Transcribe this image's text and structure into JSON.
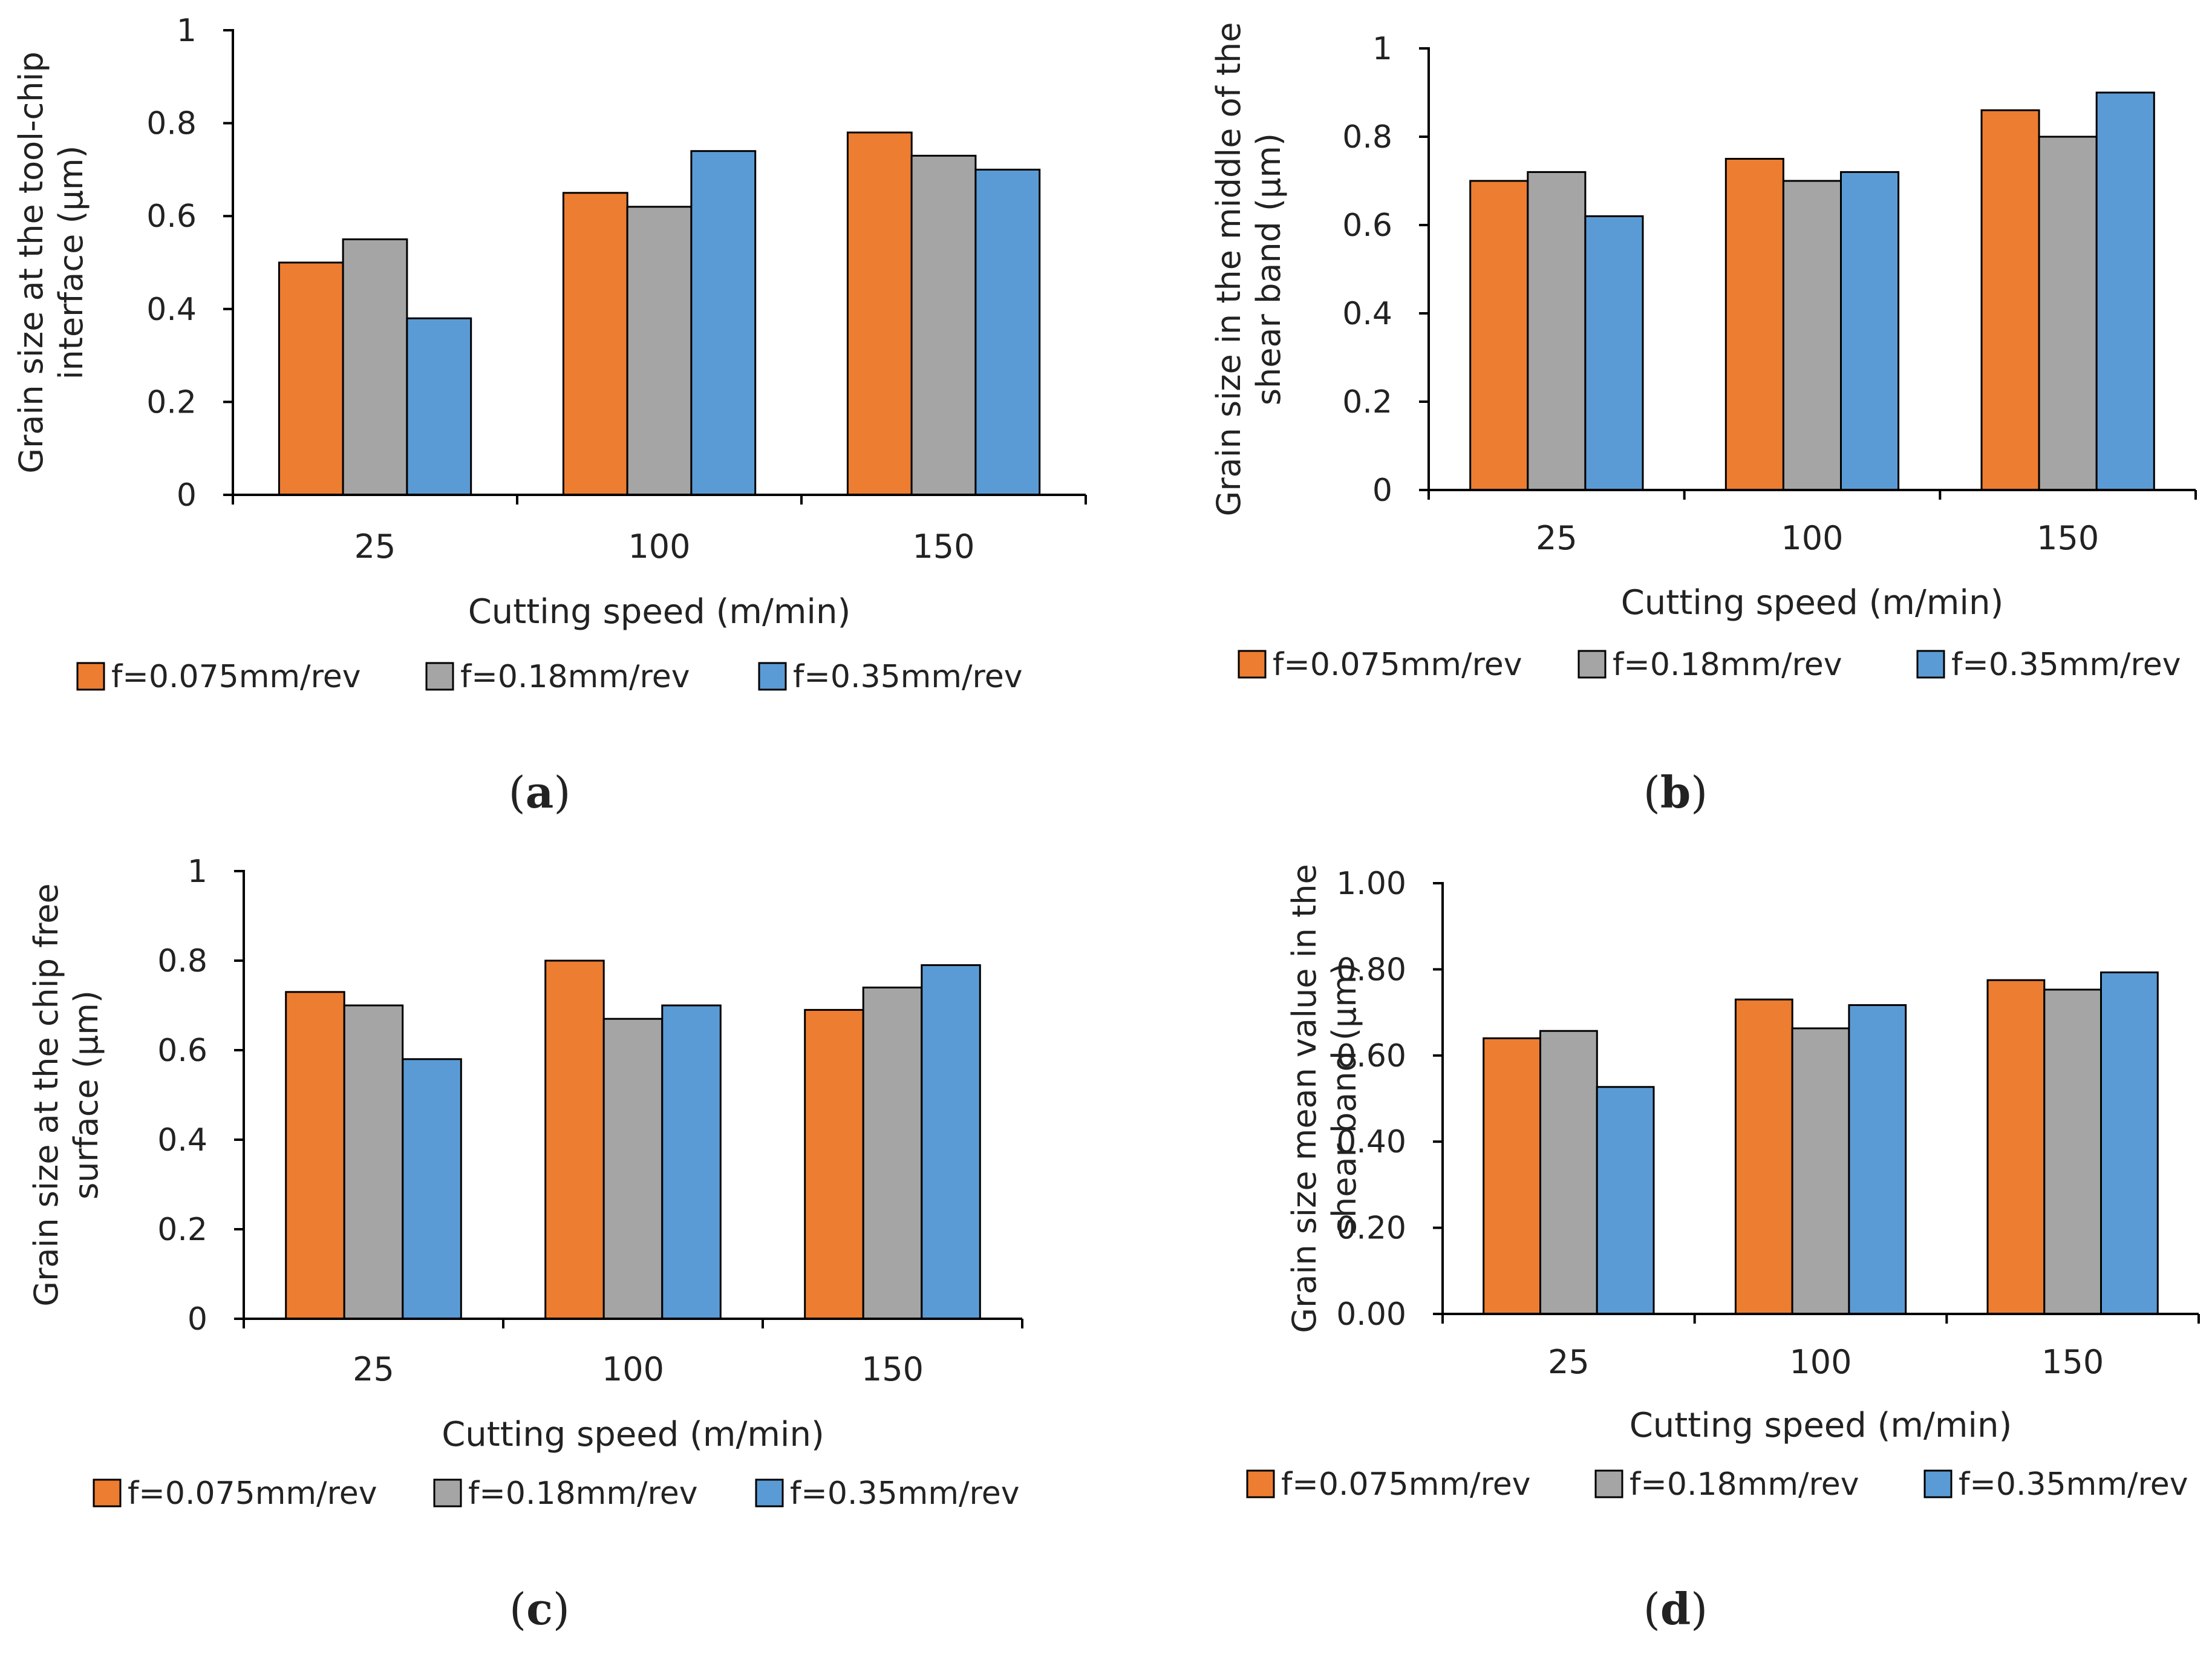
{
  "colors": {
    "f1": "#ED7D31",
    "f2": "#A5A5A5",
    "f3": "#5B9BD5",
    "axis": "#000000",
    "bar_stroke": "#000000"
  },
  "chart_data": [
    {
      "type": "bar",
      "panel": "a",
      "caption": "(a)",
      "categories": [
        "25",
        "100",
        "150"
      ],
      "series": [
        {
          "name": "f=0.075mm/rev",
          "values": [
            0.5,
            0.65,
            0.78
          ]
        },
        {
          "name": "f=0.18mm/rev",
          "values": [
            0.55,
            0.62,
            0.73
          ]
        },
        {
          "name": "f=0.35mm/rev",
          "values": [
            0.38,
            0.74,
            0.7
          ]
        }
      ],
      "xlabel": "Cutting speed (m/min)",
      "ylabel": [
        "Grain size at the tool-chip",
        "interface (μm)"
      ],
      "ylim": [
        0,
        1
      ],
      "yticks": [
        "0",
        "0.2",
        "0.4",
        "0.6",
        "0.8",
        "1"
      ],
      "grid": false,
      "legend_position": "bottom"
    },
    {
      "type": "bar",
      "panel": "b",
      "caption": "(b)",
      "categories": [
        "25",
        "100",
        "150"
      ],
      "series": [
        {
          "name": "f=0.075mm/rev",
          "values": [
            0.7,
            0.75,
            0.86
          ]
        },
        {
          "name": "f=0.18mm/rev",
          "values": [
            0.72,
            0.7,
            0.8
          ]
        },
        {
          "name": "f=0.35mm/rev",
          "values": [
            0.62,
            0.72,
            0.9
          ]
        }
      ],
      "xlabel": "Cutting speed (m/min)",
      "ylabel": [
        "Grain size in the middle of the",
        "shear band (μm)"
      ],
      "ylim": [
        0,
        1
      ],
      "yticks": [
        "0",
        "0.2",
        "0.4",
        "0.6",
        "0.8",
        "1"
      ],
      "grid": false,
      "legend_position": "bottom"
    },
    {
      "type": "bar",
      "panel": "c",
      "caption": "(c)",
      "categories": [
        "25",
        "100",
        "150"
      ],
      "series": [
        {
          "name": "f=0.075mm/rev",
          "values": [
            0.73,
            0.8,
            0.69
          ]
        },
        {
          "name": "f=0.18mm/rev",
          "values": [
            0.7,
            0.67,
            0.74
          ]
        },
        {
          "name": "f=0.35mm/rev",
          "values": [
            0.58,
            0.7,
            0.79
          ]
        }
      ],
      "xlabel": "Cutting speed (m/min)",
      "ylabel": [
        "Grain size at the chip free",
        "surface (μm)"
      ],
      "ylim": [
        0,
        1
      ],
      "yticks": [
        "0",
        "0.2",
        "0.4",
        "0.6",
        "0.8",
        "1"
      ],
      "grid": false,
      "legend_position": "bottom"
    },
    {
      "type": "bar",
      "panel": "d",
      "caption": "(d)",
      "categories": [
        "25",
        "100",
        "150"
      ],
      "series": [
        {
          "name": "f=0.075mm/rev",
          "values": [
            0.64,
            0.73,
            0.775
          ]
        },
        {
          "name": "f=0.18mm/rev",
          "values": [
            0.657,
            0.663,
            0.753
          ]
        },
        {
          "name": "f=0.35mm/rev",
          "values": [
            0.527,
            0.717,
            0.793
          ]
        }
      ],
      "xlabel": "Cutting speed (m/min)",
      "ylabel": [
        "Grain size mean value in the",
        "shear band (μm)"
      ],
      "ylim": [
        0,
        1
      ],
      "yticks": [
        "0.00",
        "0.20",
        "0.40",
        "0.60",
        "0.80",
        "1.00"
      ],
      "grid": false,
      "legend_position": "bottom"
    }
  ]
}
